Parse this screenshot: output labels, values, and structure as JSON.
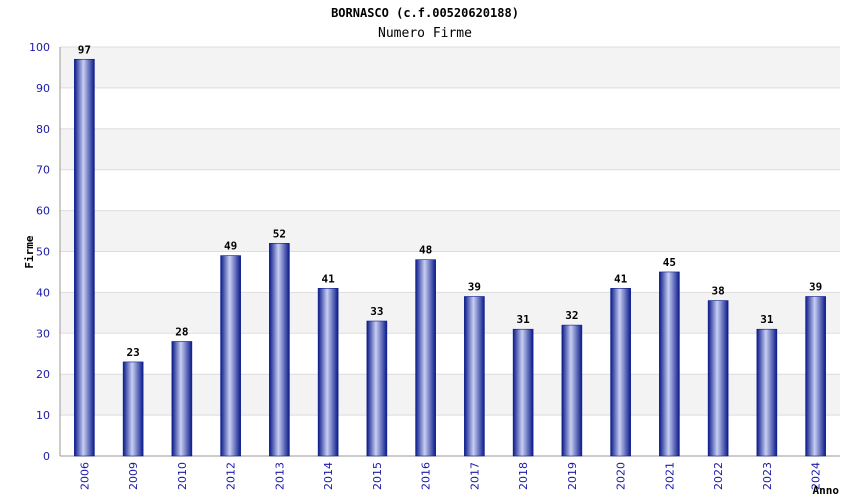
{
  "chart_data": {
    "type": "bar",
    "title": "BORNASCO (c.f.00520620188)",
    "subtitle": "Numero Firme",
    "xlabel": "Anno",
    "ylabel": "Firme",
    "ylim": [
      0,
      100
    ],
    "yticks": [
      0,
      10,
      20,
      30,
      40,
      50,
      60,
      70,
      80,
      90,
      100
    ],
    "grid": true,
    "categories": [
      "2006",
      "2009",
      "2010",
      "2012",
      "2013",
      "2014",
      "2015",
      "2016",
      "2017",
      "2018",
      "2019",
      "2020",
      "2021",
      "2022",
      "2023",
      "2024"
    ],
    "values": [
      97,
      23,
      28,
      49,
      52,
      41,
      33,
      48,
      39,
      31,
      32,
      41,
      45,
      38,
      31,
      39
    ],
    "colors": {
      "bar_dark": "#0a1a8a",
      "bar_light": "#c8cff2",
      "band": "#f3f3f3",
      "grid": "#dddddd",
      "tick_text": "#1a1aa8"
    }
  }
}
